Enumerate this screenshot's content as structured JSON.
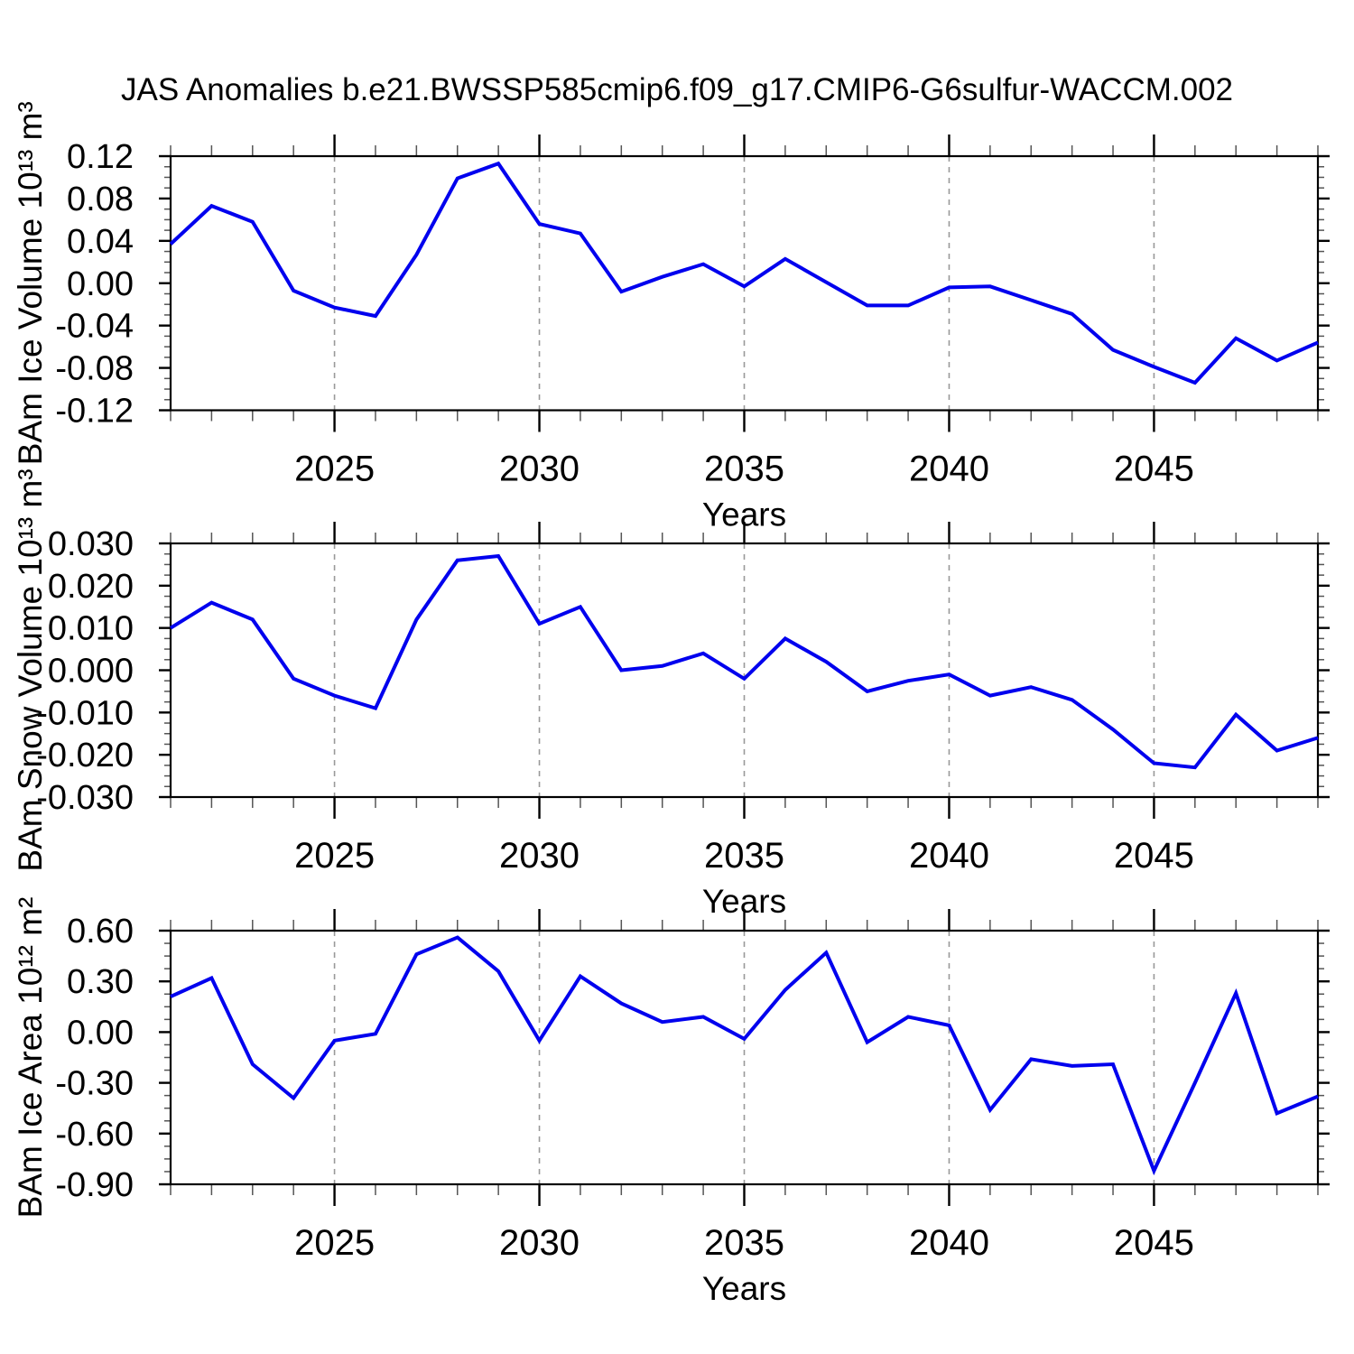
{
  "title": "JAS Anomalies b.e21.BWSSP585cmip6.f09_g17.CMIP6-G6sulfur-WACCM.002",
  "style": {
    "line_color": "#0000ee",
    "grid_color": "#999999",
    "axis_color": "#000000",
    "minor_tick_color": "#555555",
    "background": "#ffffff"
  },
  "chart_data": [
    {
      "id": "ice-volume",
      "type": "line",
      "ylabel": "BAm Ice Volume 10¹³ m³",
      "xlabel": "Years",
      "xlim": [
        2021,
        2049
      ],
      "ylim": [
        -0.12,
        0.12
      ],
      "xticks_major": [
        2025,
        2030,
        2035,
        2040,
        2045
      ],
      "xtick_labels": [
        "2025",
        "2030",
        "2035",
        "2040",
        "2045"
      ],
      "xtick_minor_step": 1,
      "grid_years": [
        2025,
        2030,
        2035,
        2040,
        2045
      ],
      "ytick_values": [
        0.12,
        0.08,
        0.04,
        0.0,
        -0.04,
        -0.08,
        -0.12
      ],
      "ytick_labels": [
        "0.12",
        "0.08",
        "0.04",
        "0.00",
        "-0.04",
        "-0.08",
        "-0.12"
      ],
      "ytick_minor_step": 0.01,
      "x": [
        2021,
        2022,
        2023,
        2024,
        2025,
        2026,
        2027,
        2028,
        2029,
        2030,
        2031,
        2032,
        2033,
        2034,
        2035,
        2036,
        2037,
        2038,
        2039,
        2040,
        2041,
        2042,
        2043,
        2044,
        2045,
        2046,
        2047,
        2048,
        2049
      ],
      "values": [
        0.037,
        0.073,
        0.058,
        -0.007,
        -0.023,
        -0.031,
        0.027,
        0.099,
        0.113,
        0.056,
        0.047,
        -0.008,
        0.006,
        0.018,
        -0.003,
        0.023,
        0.001,
        -0.021,
        -0.021,
        -0.004,
        -0.003,
        -0.016,
        -0.029,
        -0.063,
        -0.079,
        -0.094,
        -0.052,
        -0.073,
        -0.056
      ]
    },
    {
      "id": "snow-volume",
      "type": "line",
      "ylabel": "BAm Snow Volume 10¹³ m³",
      "xlabel": "Years",
      "xlim": [
        2021,
        2049
      ],
      "ylim": [
        -0.03,
        0.03
      ],
      "xticks_major": [
        2025,
        2030,
        2035,
        2040,
        2045
      ],
      "xtick_labels": [
        "2025",
        "2030",
        "2035",
        "2040",
        "2045"
      ],
      "xtick_minor_step": 1,
      "grid_years": [
        2025,
        2030,
        2035,
        2040,
        2045
      ],
      "ytick_values": [
        0.03,
        0.02,
        0.01,
        0.0,
        -0.01,
        -0.02,
        -0.03
      ],
      "ytick_labels": [
        "0.030",
        "0.020",
        "0.010",
        "0.000",
        "-0.010",
        "-0.020",
        "-0.030"
      ],
      "ytick_minor_step": 0.0025,
      "x": [
        2021,
        2022,
        2023,
        2024,
        2025,
        2026,
        2027,
        2028,
        2029,
        2030,
        2031,
        2032,
        2033,
        2034,
        2035,
        2036,
        2037,
        2038,
        2039,
        2040,
        2041,
        2042,
        2043,
        2044,
        2045,
        2046,
        2047,
        2048,
        2049
      ],
      "values": [
        0.01,
        0.016,
        0.012,
        -0.002,
        -0.006,
        -0.009,
        0.012,
        0.026,
        0.027,
        0.011,
        0.015,
        0.0,
        0.001,
        0.004,
        -0.002,
        0.0075,
        0.002,
        -0.005,
        -0.0025,
        -0.001,
        -0.006,
        -0.004,
        -0.007,
        -0.014,
        -0.022,
        -0.023,
        -0.0105,
        -0.019,
        -0.016
      ]
    },
    {
      "id": "ice-area",
      "type": "line",
      "ylabel": "BAm Ice Area 10¹² m²",
      "xlabel": "Years",
      "xlim": [
        2021,
        2049
      ],
      "ylim": [
        -0.9,
        0.6
      ],
      "xticks_major": [
        2025,
        2030,
        2035,
        2040,
        2045
      ],
      "xtick_labels": [
        "2025",
        "2030",
        "2035",
        "2040",
        "2045"
      ],
      "xtick_minor_step": 1,
      "grid_years": [
        2025,
        2030,
        2035,
        2040,
        2045
      ],
      "ytick_values": [
        0.6,
        0.3,
        0.0,
        -0.3,
        -0.6,
        -0.9
      ],
      "ytick_labels": [
        "0.60",
        "0.30",
        "0.00",
        "-0.30",
        "-0.60",
        "-0.90"
      ],
      "ytick_minor_step": 0.075,
      "x": [
        2021,
        2022,
        2023,
        2024,
        2025,
        2026,
        2027,
        2028,
        2029,
        2030,
        2031,
        2032,
        2033,
        2034,
        2035,
        2036,
        2037,
        2038,
        2039,
        2040,
        2041,
        2042,
        2043,
        2044,
        2045,
        2046,
        2047,
        2048,
        2049
      ],
      "values": [
        0.21,
        0.32,
        -0.19,
        -0.39,
        -0.05,
        -0.01,
        0.46,
        0.56,
        0.36,
        -0.05,
        0.33,
        0.17,
        0.06,
        0.09,
        -0.04,
        0.25,
        0.47,
        -0.06,
        0.09,
        0.04,
        -0.46,
        -0.16,
        -0.2,
        -0.19,
        -0.82,
        -0.3,
        0.23,
        -0.48,
        -0.38
      ]
    }
  ]
}
